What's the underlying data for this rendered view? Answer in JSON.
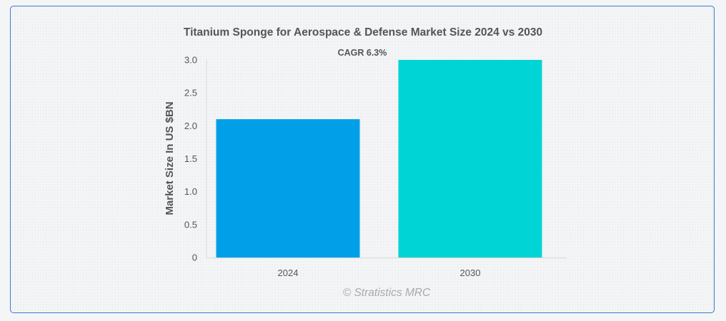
{
  "chart_data": {
    "type": "bar",
    "title": "Titanium Sponge for Aerospace & Defense Market Size 2024 vs 2030",
    "xlabel": "",
    "ylabel": "Market Size In US $BN",
    "categories": [
      "2024",
      "2030"
    ],
    "values": [
      2.1,
      3.0
    ],
    "colors": [
      "#009fe8",
      "#00d4d4"
    ],
    "ylim": [
      0,
      3.0
    ],
    "yticks": [
      "0",
      "0.5",
      "1.0",
      "1.5",
      "2.0",
      "2.5",
      "3.0"
    ],
    "yticks_values": [
      0,
      0.5,
      1.0,
      1.5,
      2.0,
      2.5,
      3.0
    ],
    "grid": false,
    "legend": "none",
    "annotation": "CAGR 6.3%",
    "credit": "© Stratistics MRC"
  }
}
